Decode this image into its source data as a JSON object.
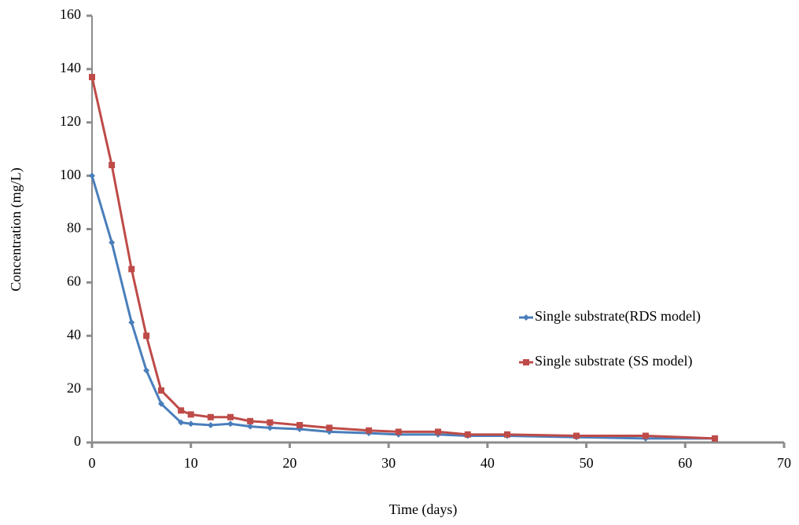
{
  "chart_data": {
    "type": "line",
    "x_label": "Time (days)",
    "y_label": "Concentration  (mg/L)",
    "x": [
      0,
      2,
      4,
      5.5,
      7,
      9,
      10,
      12,
      14,
      16,
      18,
      21,
      24,
      28,
      31,
      35,
      38,
      42,
      49,
      56,
      63
    ],
    "series": [
      {
        "name": "Single substrate(RDS model)",
        "color": "#4a7ebb",
        "marker": "diamond",
        "values": [
          100,
          75,
          45,
          27,
          14.5,
          7.5,
          7,
          6.5,
          7,
          6,
          5.5,
          5,
          4,
          3.5,
          3,
          3,
          2.5,
          2.5,
          2,
          1.5,
          1.5
        ]
      },
      {
        "name": "Single substrate (SS model)",
        "color": "#be4b48",
        "marker": "square",
        "values": [
          137,
          104,
          65,
          40,
          19.5,
          12,
          10.5,
          9.5,
          9.5,
          8,
          7.5,
          6.5,
          5.5,
          4.5,
          4,
          4,
          3,
          3,
          2.5,
          2.5,
          1.5
        ]
      }
    ],
    "xlim": [
      0,
      70
    ],
    "xticks": [
      0,
      10,
      20,
      30,
      40,
      50,
      60,
      70
    ],
    "ylim": [
      0,
      160
    ],
    "yticks": [
      0,
      20,
      40,
      60,
      80,
      100,
      120,
      140,
      160
    ],
    "grid": false,
    "legend": "right"
  }
}
